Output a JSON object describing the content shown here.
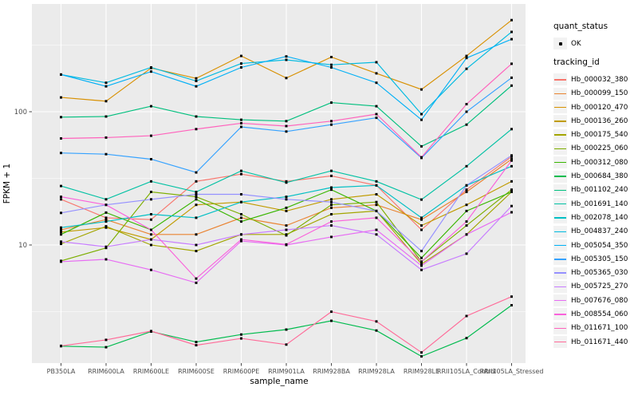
{
  "figure": {
    "panel_background": "#EBEBEB",
    "grid_color": "#FFFFFF",
    "point_color": "#000000",
    "tick_color": "#333333",
    "tick_label_color": "#4D4D4D",
    "text_color": "#000000",
    "legend_key_background": "#F2F2F2"
  },
  "axes": {
    "x_title": "sample_name",
    "y_title": "FPKM + 1",
    "y_scale": "log10",
    "y_major_ticks": [
      {
        "label": "100",
        "value": 100
      },
      {
        "label": "10",
        "value": 10
      }
    ],
    "y_minor_gridlines": [
      316.2,
      31.62,
      3.162
    ]
  },
  "legend": {
    "quant_status_title": "quant_status",
    "quant_status_items": [
      {
        "label": "OK",
        "marker": "black-point"
      }
    ],
    "tracking_id_title": "tracking_id"
  },
  "chart_data": {
    "type": "line",
    "title": "",
    "xlabel": "sample_name",
    "ylabel": "FPKM + 1",
    "y_scale": "log10",
    "ylim": [
      1.2,
      600
    ],
    "grid": true,
    "legend_position": "right",
    "point_marker": "small black square (quant_status OK)",
    "categories": [
      "PB350LA",
      "RRIM600LA",
      "RRIM600LE",
      "RRIM600SE",
      "RRIM600PE",
      "RRIM901LA",
      "RRIM928BA",
      "RRIM928LA",
      "RRIM928LE",
      "RRII105LA_Control",
      "RRII105LA_Stressed"
    ],
    "series": [
      {
        "name": "Hb_000032_380",
        "color": "#F8766D",
        "values": [
          22,
          16,
          15.5,
          30,
          34,
          30,
          33,
          28,
          13,
          26,
          46
        ]
      },
      {
        "name": "Hb_000099_150",
        "color": "#EA8331",
        "values": [
          13,
          15.5,
          12,
          12,
          16,
          14,
          19,
          20,
          15.5,
          25,
          44
        ]
      },
      {
        "name": "Hb_000120_470",
        "color": "#D89000",
        "values": [
          128,
          120,
          213,
          178,
          262,
          179,
          257,
          194,
          147,
          262,
          487
        ]
      },
      {
        "name": "Hb_000136_260",
        "color": "#C09B00",
        "values": [
          12.5,
          13.5,
          11,
          20,
          21,
          18,
          22,
          24,
          14,
          20,
          30
        ]
      },
      {
        "name": "Hb_000175_540",
        "color": "#A3A500",
        "values": [
          10.2,
          13.8,
          10,
          9,
          12,
          12,
          17,
          18,
          7.2,
          12,
          25
        ]
      },
      {
        "name": "Hb_000225_060",
        "color": "#7CAE00",
        "values": [
          7.6,
          9.5,
          25,
          23,
          17,
          11.8,
          20,
          21,
          7.5,
          14,
          26
        ]
      },
      {
        "name": "Hb_000312_080",
        "color": "#39B600",
        "values": [
          12,
          17.5,
          13,
          22,
          15,
          19,
          26,
          18,
          8,
          18,
          25
        ]
      },
      {
        "name": "Hb_000684_380",
        "color": "#00BB4E",
        "values": [
          1.74,
          1.71,
          2.24,
          1.87,
          2.13,
          2.32,
          2.7,
          2.28,
          1.46,
          2.0,
          3.53
        ]
      },
      {
        "name": "Hb_001102_240",
        "color": "#00BF7D",
        "values": [
          91,
          92,
          110,
          92,
          87,
          85,
          117,
          110,
          55,
          80,
          157
        ]
      },
      {
        "name": "Hb_001691_140",
        "color": "#00C1A3",
        "values": [
          27.7,
          22,
          30,
          25,
          36,
          29.4,
          36,
          30,
          21.9,
          39,
          74
        ]
      },
      {
        "name": "Hb_002078_140",
        "color": "#00BFC4",
        "values": [
          13.5,
          15,
          17,
          16,
          21,
          23,
          27,
          28,
          16,
          28,
          39
        ]
      },
      {
        "name": "Hb_004837_240",
        "color": "#00BAE0",
        "values": [
          190,
          165,
          215,
          170,
          230,
          245,
          225,
          235,
          96,
          210,
          397
        ]
      },
      {
        "name": "Hb_005054_350",
        "color": "#00B0F6",
        "values": [
          190,
          155,
          200,
          155,
          215,
          260,
          215,
          165,
          87,
          253,
          350
        ]
      },
      {
        "name": "Hb_005305_150",
        "color": "#35A2FF",
        "values": [
          49,
          48,
          44,
          35,
          77,
          71,
          80,
          90,
          45,
          100,
          180
        ]
      },
      {
        "name": "Hb_005365_030",
        "color": "#9590FF",
        "values": [
          17.4,
          20,
          22,
          24,
          24,
          22,
          21,
          18,
          9,
          28,
          47
        ]
      },
      {
        "name": "Hb_005725_270",
        "color": "#C77CFF",
        "values": [
          10.6,
          9.7,
          11,
          10,
          12,
          13,
          14,
          12,
          6.5,
          8.6,
          19.6
        ]
      },
      {
        "name": "Hb_007676_080",
        "color": "#E76BF3",
        "values": [
          7.5,
          7.8,
          6.5,
          5.2,
          10.7,
          10,
          11.5,
          13,
          7,
          12,
          17.6
        ]
      },
      {
        "name": "Hb_008554_060",
        "color": "#FA62DB",
        "values": [
          23,
          20,
          13,
          5.6,
          11,
          10.1,
          15,
          16,
          7.5,
          15,
          43
        ]
      },
      {
        "name": "Hb_011671_100",
        "color": "#FF62BC",
        "values": [
          63,
          64,
          66,
          74,
          82,
          78,
          85,
          96,
          45.5,
          114,
          229
        ]
      },
      {
        "name": "Hb_011671_440",
        "color": "#FF6A98",
        "values": [
          1.75,
          1.94,
          2.26,
          1.77,
          1.99,
          1.79,
          3.16,
          2.67,
          1.56,
          2.93,
          4.1
        ]
      }
    ]
  }
}
